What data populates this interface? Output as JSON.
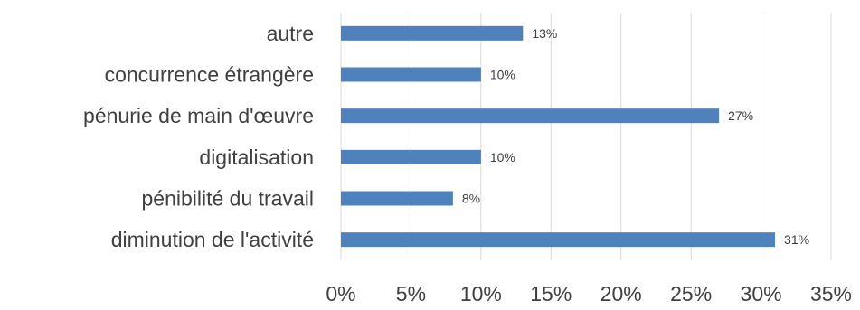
{
  "chart_data": {
    "type": "bar",
    "orientation": "horizontal",
    "categories": [
      "autre",
      "concurrence étrangère",
      "pénurie de main d'œuvre",
      "digitalisation",
      "pénibilité du travail",
      "diminution de l'activité"
    ],
    "values": [
      13,
      10,
      27,
      10,
      8,
      31
    ],
    "data_labels": [
      "13%",
      "10%",
      "27%",
      "10%",
      "8%",
      "31%"
    ],
    "xlim": [
      0,
      35
    ],
    "x_ticks": [
      0,
      5,
      10,
      15,
      20,
      25,
      30,
      35
    ],
    "x_tick_labels": [
      "0%",
      "5%",
      "10%",
      "15%",
      "20%",
      "25%",
      "30%",
      "35%"
    ],
    "grid": true,
    "legend": "none",
    "bar_color": "#4f81bd"
  }
}
